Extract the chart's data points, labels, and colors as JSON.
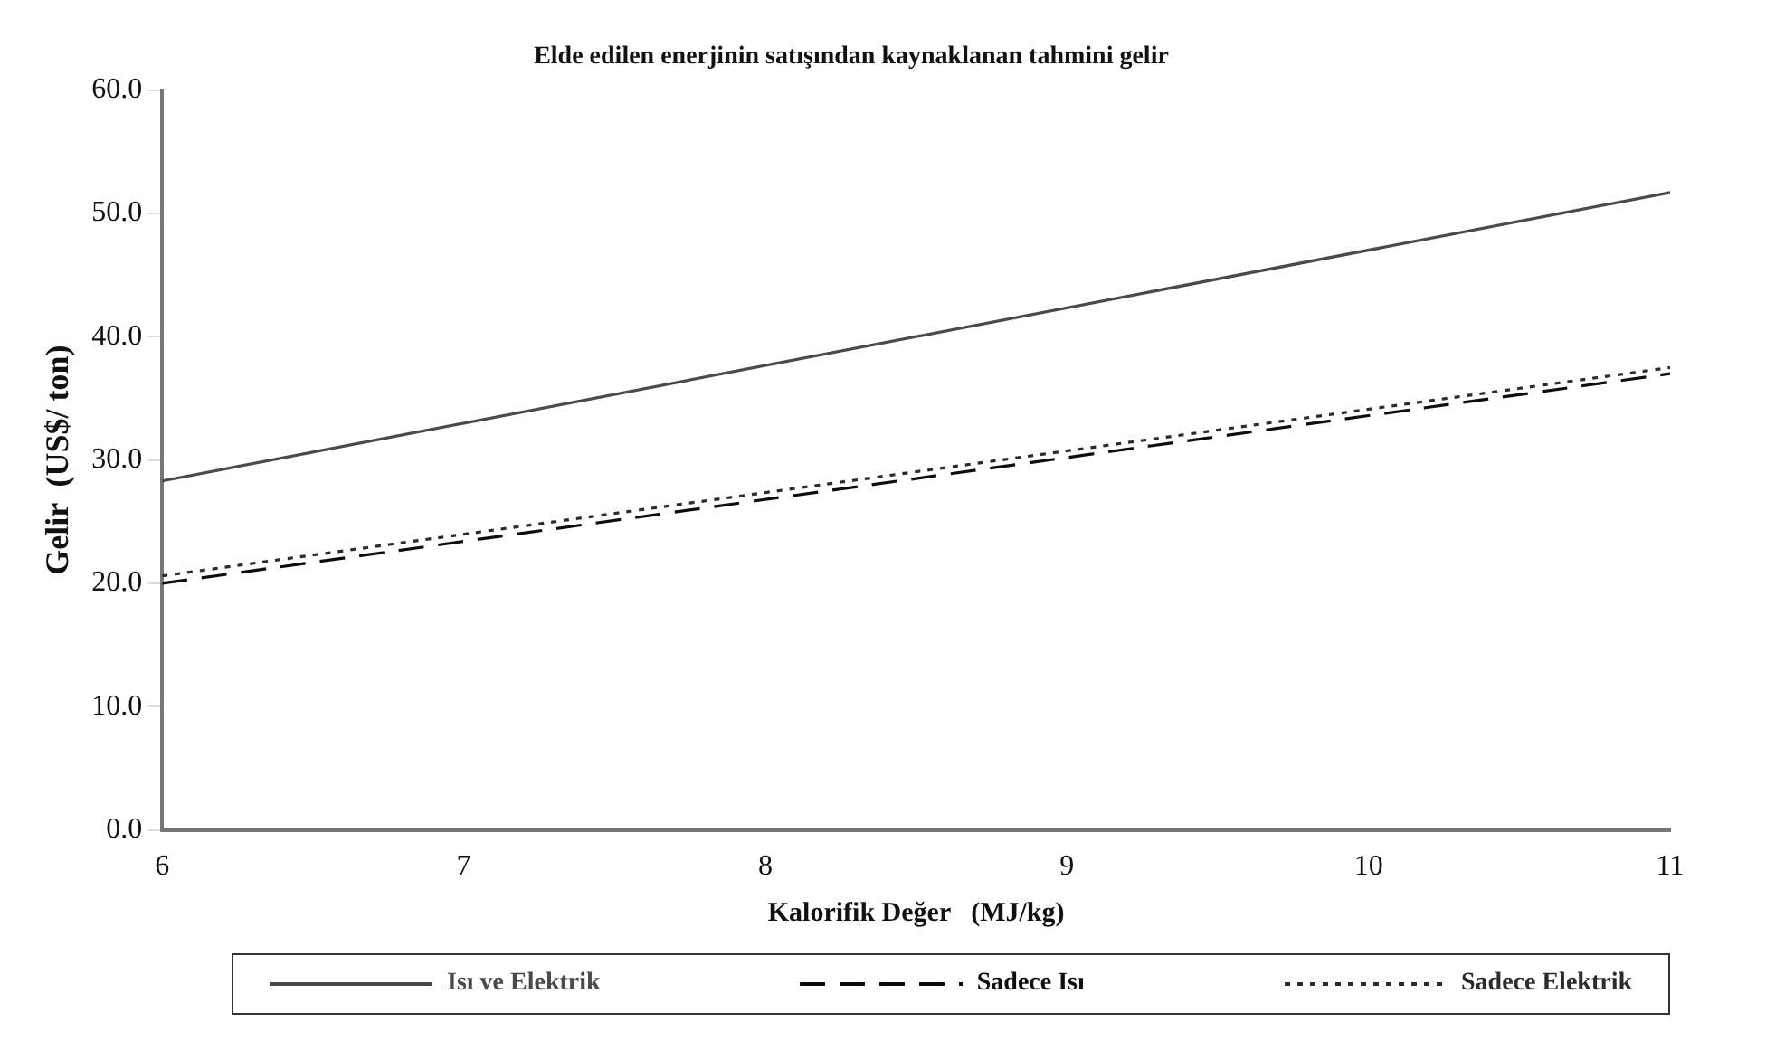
{
  "chart_data": {
    "type": "line",
    "title": "Elde edilen enerjinin satışından kaynaklanan tahmini gelir",
    "xlabel": "Kalorifik Değer   (MJ/kg)",
    "ylabel": "Gelir  (US$/ ton)",
    "x": [
      6,
      11
    ],
    "series": [
      {
        "name": "Isı ve Elektrik",
        "color": "#4a4a4a",
        "values": [
          28.3,
          51.7
        ],
        "line_style": "solid"
      },
      {
        "name": "Sadece Isı",
        "color": "#0d0d0d",
        "values": [
          20.0,
          37.0
        ],
        "line_style": "dashed"
      },
      {
        "name": "Sadece Elektrik",
        "color": "#2b2b2b",
        "values": [
          20.6,
          37.5
        ],
        "line_style": "dotted"
      }
    ],
    "xlim": [
      6,
      11
    ],
    "xticks": [
      6,
      7,
      8,
      9,
      10,
      11
    ],
    "ylim": [
      0,
      60
    ],
    "yticks": [
      {
        "value": 0,
        "label": "0.0"
      },
      {
        "value": 10,
        "label": "10.0"
      },
      {
        "value": 20,
        "label": "20.0"
      },
      {
        "value": 30,
        "label": "30.0"
      },
      {
        "value": 40,
        "label": "40.0"
      },
      {
        "value": 50,
        "label": "50.0"
      },
      {
        "value": 60,
        "label": "60.0"
      }
    ],
    "grid": false,
    "legend": "bottom",
    "marker": "none"
  }
}
